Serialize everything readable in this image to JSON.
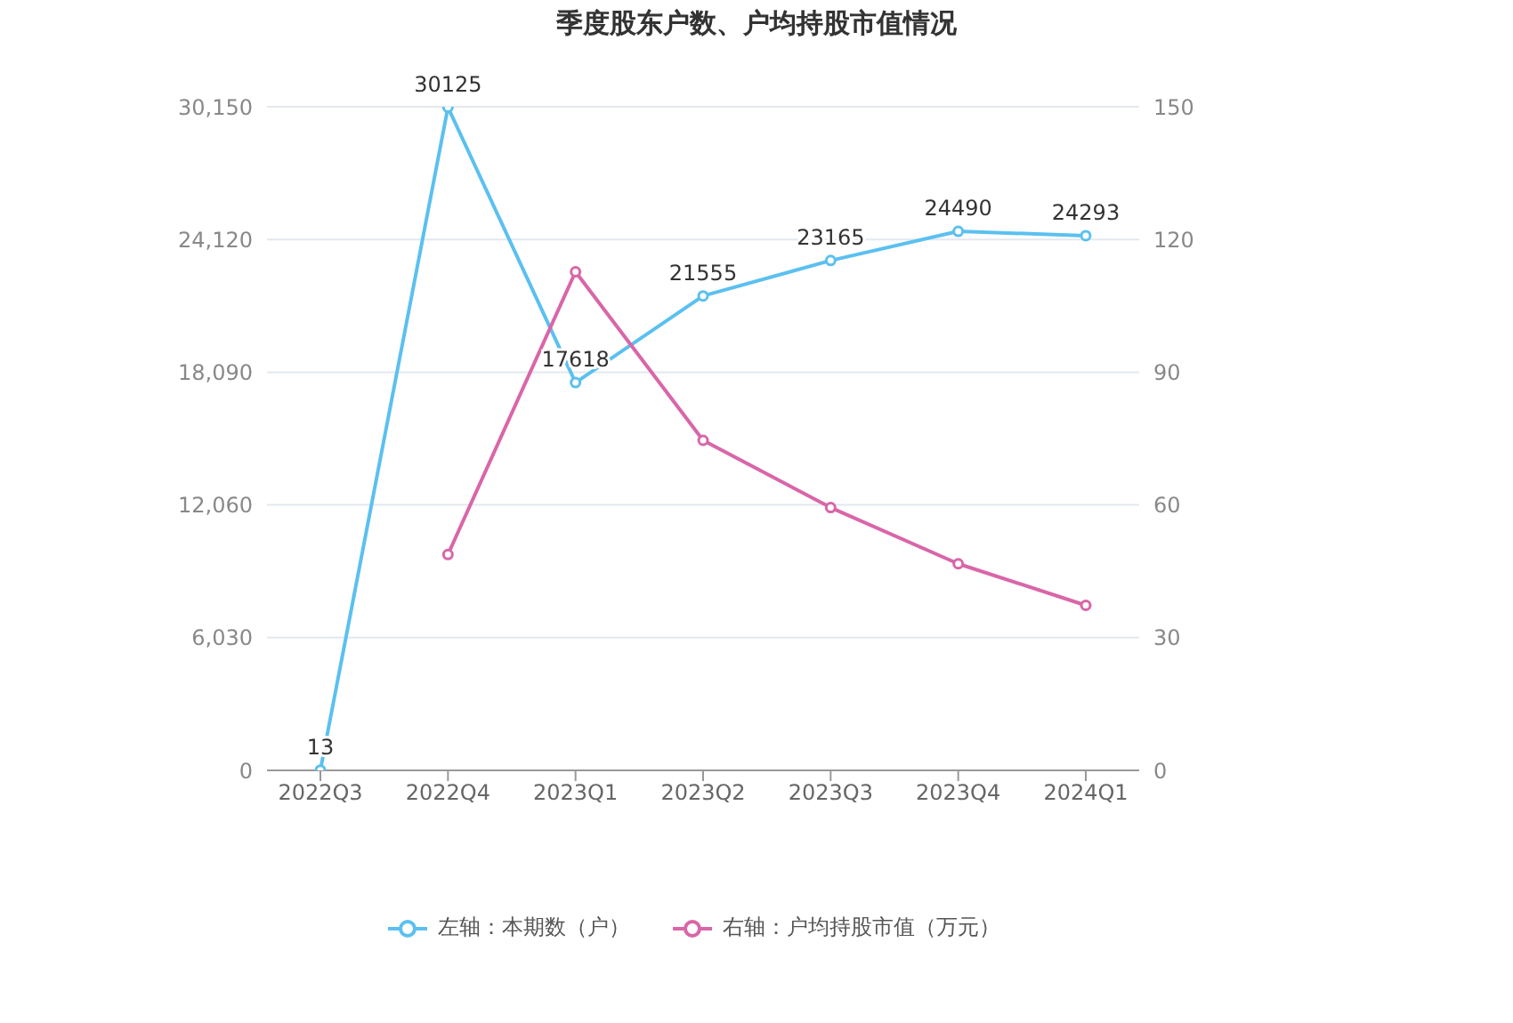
{
  "chart_data": {
    "type": "line",
    "title": "季度股东户数、户均持股市值情况",
    "categories": [
      "2022Q3",
      "2022Q4",
      "2023Q1",
      "2023Q2",
      "2023Q3",
      "2023Q4",
      "2024Q1"
    ],
    "series": [
      {
        "name": "左轴：本期数（户）",
        "color": "#5bc0f0",
        "values": [
          13,
          30125,
          17618,
          21555,
          23165,
          24490,
          24293
        ],
        "value_labels": [
          "13",
          "30125",
          "17618",
          "21555",
          "23165",
          "24490",
          "24293"
        ]
      },
      {
        "name": "右轴：户均持股市值（万元）",
        "color": "#d966a8",
        "axis": "y2",
        "values": [
          null,
          48.8,
          112.7,
          74.6,
          59.4,
          46.7,
          37.3
        ]
      }
    ],
    "ylim": [
      0,
      30150
    ],
    "yticks": [
      0,
      {
        "value": 6030,
        "label": "6,030"
      },
      {
        "value": 12060,
        "label": "12,060"
      },
      {
        "value": 18090,
        "label": "18,090"
      },
      {
        "value": 24120,
        "label": "24,120"
      },
      {
        "value": 30150,
        "label": "30,150"
      }
    ],
    "y2lim": [
      0,
      150
    ],
    "y2ticks": [
      0,
      30,
      60,
      90,
      120,
      150
    ],
    "grid": "y",
    "legend": "bottom",
    "marker": "circle",
    "line_style": "solid"
  }
}
